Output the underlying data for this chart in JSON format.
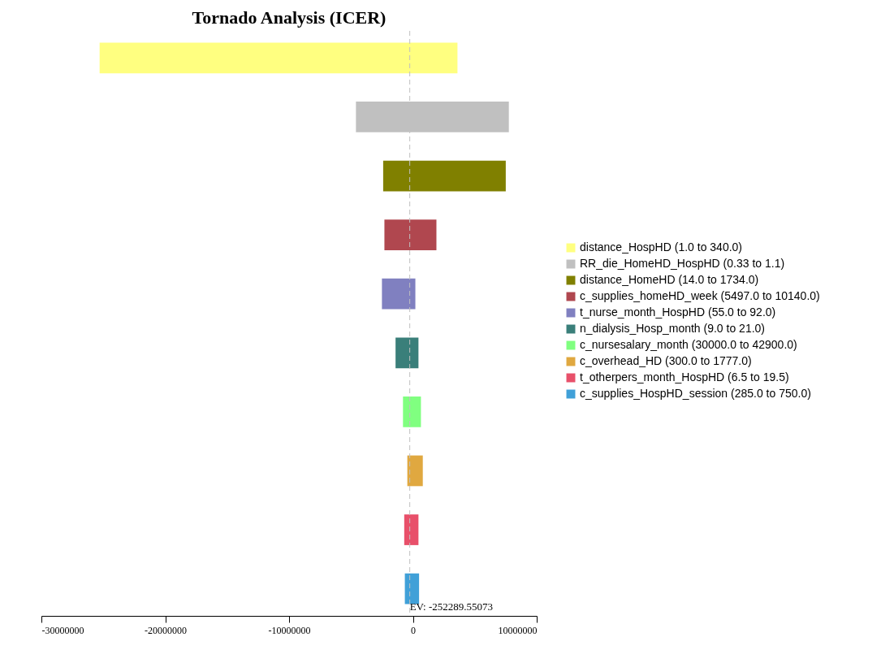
{
  "chart_data": {
    "type": "bar",
    "title": "Tornado Analysis (ICER)",
    "orientation": "horizontal",
    "categories": [
      null,
      null,
      null,
      null,
      null,
      null,
      null,
      null,
      null,
      null
    ],
    "series": [
      {
        "name": "distance_HospHD (1.0 to 340.0)",
        "color": "#ffff80",
        "base": [
          -25300000,
          null,
          null,
          null,
          null,
          null,
          null,
          null,
          null,
          null
        ],
        "values": [
          28900000,
          null,
          null,
          null,
          null,
          null,
          null,
          null,
          null,
          null
        ]
      },
      {
        "name": "RR_die_HomeHD_HospHD (0.33 to 1.1)",
        "color": "#c0c0c0",
        "base": [
          null,
          -4600000,
          null,
          null,
          null,
          null,
          null,
          null,
          null,
          null
        ],
        "values": [
          null,
          12350000,
          null,
          null,
          null,
          null,
          null,
          null,
          null,
          null
        ]
      },
      {
        "name": "distance_HomeHD (14.0 to 1734.0)",
        "color": "#808000",
        "base": [
          null,
          null,
          -2400000,
          null,
          null,
          null,
          null,
          null,
          null,
          null
        ],
        "values": [
          null,
          null,
          9900000,
          null,
          null,
          null,
          null,
          null,
          null,
          null
        ]
      },
      {
        "name": "c_supplies_homeHD_week (5497.0 to 10140.0)",
        "color": "#b0474f",
        "base": [
          null,
          null,
          null,
          -2300000,
          null,
          null,
          null,
          null,
          null,
          null
        ],
        "values": [
          null,
          null,
          null,
          4200000,
          null,
          null,
          null,
          null,
          null,
          null
        ]
      },
      {
        "name": "t_nurse_month_HospHD (55.0 to 92.0)",
        "color": "#8080c0",
        "base": [
          null,
          null,
          null,
          null,
          -2500000,
          null,
          null,
          null,
          null,
          null
        ],
        "values": [
          null,
          null,
          null,
          null,
          2700000,
          null,
          null,
          null,
          null,
          null
        ]
      },
      {
        "name": "n_dialysis_Hosp_month (9.0 to 21.0)",
        "color": "#3a7f7a",
        "base": [
          null,
          null,
          null,
          null,
          null,
          -1400000,
          null,
          null,
          null,
          null
        ],
        "values": [
          null,
          null,
          null,
          null,
          null,
          1850000,
          null,
          null,
          null,
          null
        ]
      },
      {
        "name": "c_nursesalary_month (30000.0 to 42900.0)",
        "color": "#80ff80",
        "base": [
          null,
          null,
          null,
          null,
          null,
          null,
          -800000,
          null,
          null,
          null
        ],
        "values": [
          null,
          null,
          null,
          null,
          null,
          null,
          1450000,
          null,
          null,
          null
        ]
      },
      {
        "name": "c_overhead_HD (300.0 to 1777.0)",
        "color": "#e0a840",
        "base": [
          null,
          null,
          null,
          null,
          null,
          null,
          null,
          -450000,
          null,
          null
        ],
        "values": [
          null,
          null,
          null,
          null,
          null,
          null,
          null,
          1250000,
          null,
          null
        ]
      },
      {
        "name": "t_otherpers_month_HospHD (6.5 to 19.5)",
        "color": "#e8506a",
        "base": [
          null,
          null,
          null,
          null,
          null,
          null,
          null,
          null,
          -700000,
          null
        ],
        "values": [
          null,
          null,
          null,
          null,
          null,
          null,
          null,
          null,
          1150000,
          null
        ]
      },
      {
        "name": "c_supplies_HospHD_session (285.0 to 750.0)",
        "color": "#40a0d8",
        "base": [
          null,
          null,
          null,
          null,
          null,
          null,
          null,
          null,
          null,
          -650000
        ],
        "values": [
          null,
          null,
          null,
          null,
          null,
          null,
          null,
          null,
          null,
          1150000
        ]
      }
    ],
    "xlim": [
      -30000000,
      10000000
    ],
    "xticks": [
      -30000000,
      -20000000,
      -10000000,
      0,
      10000000
    ],
    "ref_lines": [
      {
        "axis": "x",
        "value": -252289.55073,
        "label": "EV: -252289.55073",
        "line_style": "dashed",
        "color": "#c0c0c0"
      }
    ],
    "grid": false,
    "legend": "right"
  }
}
